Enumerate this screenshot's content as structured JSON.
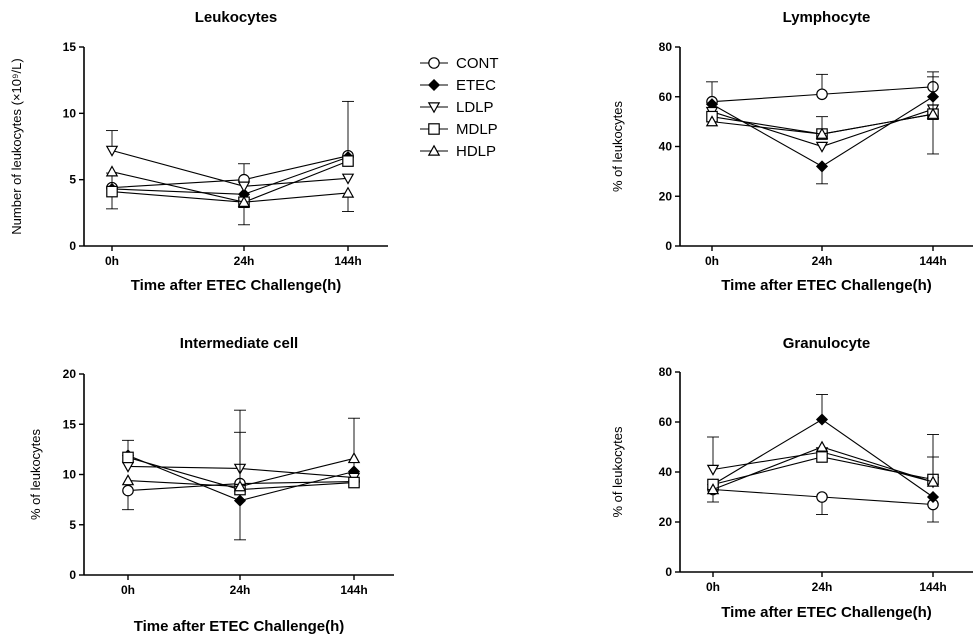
{
  "legend": [
    {
      "name": "CONT",
      "marker": "circle-open"
    },
    {
      "name": "ETEC",
      "marker": "diamond-filled"
    },
    {
      "name": "LDLP",
      "marker": "triangle-down-open"
    },
    {
      "name": "MDLP",
      "marker": "square-open"
    },
    {
      "name": "HDLP",
      "marker": "triangle-up-open"
    }
  ],
  "chart_data": [
    {
      "type": "line",
      "title": "Leukocytes",
      "xlabel": "Time after ETEC Challenge(h)",
      "ylabel": "Number of leukocytes (×10⁹/L)",
      "categories": [
        "0h",
        "24h",
        "144h"
      ],
      "ylim": [
        0,
        15
      ],
      "yticks": [
        "0",
        "5",
        "10",
        "15"
      ],
      "series": [
        {
          "name": "CONT",
          "values": [
            4.4,
            5.0,
            6.8
          ],
          "err_low": [
            1.6,
            0,
            0
          ],
          "err_high": [
            0,
            1.2,
            4.1
          ]
        },
        {
          "name": "ETEC",
          "values": [
            4.3,
            3.9,
            6.7
          ],
          "err_low": [
            0,
            2.3,
            0
          ],
          "err_high": [
            1.2,
            0,
            0
          ]
        },
        {
          "name": "LDLP",
          "values": [
            7.2,
            4.5,
            5.1
          ],
          "err_low": [
            0,
            0,
            0
          ],
          "err_high": [
            1.5,
            0,
            0
          ]
        },
        {
          "name": "MDLP",
          "values": [
            4.1,
            3.3,
            6.4
          ],
          "err_low": [
            0,
            0,
            0
          ],
          "err_high": [
            0,
            0,
            0
          ]
        },
        {
          "name": "HDLP",
          "values": [
            5.6,
            3.3,
            4.0
          ],
          "err_low": [
            0,
            0,
            1.4
          ],
          "err_high": [
            0,
            0,
            0
          ]
        }
      ]
    },
    {
      "type": "line",
      "title": "Lymphocyte",
      "xlabel": "Time after ETEC Challenge(h)",
      "ylabel": "% of leukocytes",
      "categories": [
        "0h",
        "24h",
        "144h"
      ],
      "ylim": [
        0,
        80
      ],
      "yticks": [
        "0",
        "20",
        "40",
        "60",
        "80"
      ],
      "series": [
        {
          "name": "CONT",
          "values": [
            58,
            61,
            64
          ],
          "err_low": [
            0,
            0,
            0
          ],
          "err_high": [
            8,
            8,
            6
          ]
        },
        {
          "name": "ETEC",
          "values": [
            57,
            32,
            60
          ],
          "err_low": [
            0,
            7,
            0
          ],
          "err_high": [
            0,
            0,
            0
          ]
        },
        {
          "name": "LDLP",
          "values": [
            54,
            40,
            55
          ],
          "err_low": [
            0,
            0,
            18
          ],
          "err_high": [
            0,
            0,
            0
          ]
        },
        {
          "name": "MDLP",
          "values": [
            52,
            45,
            53
          ],
          "err_low": [
            0,
            0,
            0
          ],
          "err_high": [
            0,
            7,
            0
          ]
        },
        {
          "name": "HDLP",
          "values": [
            50,
            45,
            53
          ],
          "err_low": [
            0,
            0,
            0
          ],
          "err_high": [
            0,
            0,
            15
          ]
        }
      ]
    },
    {
      "type": "line",
      "title": "Intermediate cell",
      "xlabel": "Time after ETEC Challenge(h)",
      "ylabel": "% of leukocytes",
      "categories": [
        "0h",
        "24h",
        "144h"
      ],
      "ylim": [
        0,
        20
      ],
      "yticks": [
        "0",
        "5",
        "10",
        "15",
        "20"
      ],
      "series": [
        {
          "name": "CONT",
          "values": [
            8.4,
            9.1,
            9.3
          ],
          "err_low": [
            1.9,
            0,
            0
          ],
          "err_high": [
            0,
            0,
            0
          ]
        },
        {
          "name": "ETEC",
          "values": [
            11.9,
            7.4,
            10.3
          ],
          "err_low": [
            0,
            3.9,
            0
          ],
          "err_high": [
            1.5,
            0,
            5.3
          ]
        },
        {
          "name": "LDLP",
          "values": [
            10.8,
            10.6,
            9.7
          ],
          "err_low": [
            0,
            0,
            0
          ],
          "err_high": [
            0,
            0,
            0
          ]
        },
        {
          "name": "MDLP",
          "values": [
            11.7,
            8.5,
            9.2
          ],
          "err_low": [
            0,
            0,
            0
          ],
          "err_high": [
            0,
            7.9,
            0
          ]
        },
        {
          "name": "HDLP",
          "values": [
            9.4,
            8.8,
            11.6
          ],
          "err_low": [
            0,
            0,
            0
          ],
          "err_high": [
            0,
            5.4,
            0
          ]
        }
      ]
    },
    {
      "type": "line",
      "title": "Granulocyte",
      "xlabel": "Time after ETEC Challenge(h)",
      "ylabel": "% of leukocytes",
      "categories": [
        "0h",
        "24h",
        "144h"
      ],
      "ylim": [
        0,
        80
      ],
      "yticks": [
        "0",
        "20",
        "40",
        "60",
        "80"
      ],
      "series": [
        {
          "name": "CONT",
          "values": [
            33,
            30,
            27
          ],
          "err_low": [
            5,
            7,
            7
          ],
          "err_high": [
            0,
            0,
            0
          ]
        },
        {
          "name": "ETEC",
          "values": [
            35,
            61,
            30
          ],
          "err_low": [
            0,
            0,
            0
          ],
          "err_high": [
            0,
            10,
            0
          ]
        },
        {
          "name": "LDLP",
          "values": [
            41,
            48,
            36
          ],
          "err_low": [
            0,
            0,
            0
          ],
          "err_high": [
            13,
            0,
            0
          ]
        },
        {
          "name": "MDLP",
          "values": [
            35,
            46,
            37
          ],
          "err_low": [
            0,
            0,
            0
          ],
          "err_high": [
            0,
            0,
            18
          ]
        },
        {
          "name": "HDLP",
          "values": [
            33,
            50,
            36
          ],
          "err_low": [
            0,
            0,
            0
          ],
          "err_high": [
            0,
            0,
            10
          ]
        }
      ]
    }
  ]
}
